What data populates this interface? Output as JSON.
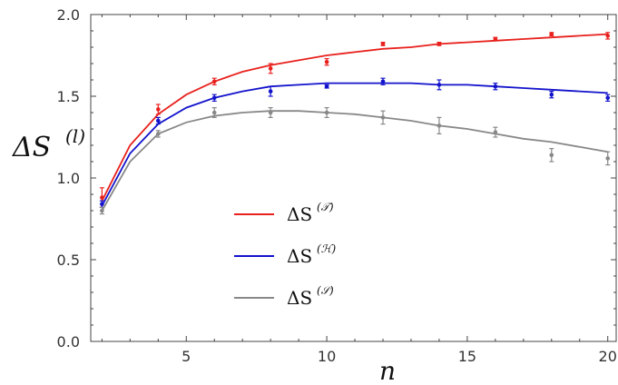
{
  "chart_data": {
    "type": "line",
    "xlabel": "n",
    "ylabel": "ΔS",
    "ylabel_superscript": "(l)",
    "xlim": [
      1.6,
      20.3
    ],
    "ylim": [
      0.0,
      2.0
    ],
    "xticks": [
      5,
      10,
      15,
      20
    ],
    "yticks": [
      0.0,
      0.5,
      1.0,
      1.5,
      2.0
    ],
    "ytick_labels": [
      "0.0",
      "0.5",
      "1.0",
      "1.5",
      "2.0"
    ],
    "grid": false,
    "legend_position": "center-left",
    "series": [
      {
        "name": "ΔS",
        "name_superscript": "(𝒯)",
        "color": "#e8211d",
        "curve_x": [
          2,
          3,
          4,
          5,
          6,
          7,
          8,
          9,
          10,
          11,
          12,
          13,
          14,
          15,
          16,
          17,
          18,
          19,
          20
        ],
        "curve_y": [
          0.86,
          1.2,
          1.39,
          1.51,
          1.59,
          1.65,
          1.69,
          1.72,
          1.75,
          1.77,
          1.79,
          1.8,
          1.82,
          1.83,
          1.84,
          1.85,
          1.86,
          1.87,
          1.88
        ],
        "points_x": [
          2,
          4,
          6,
          8,
          10,
          12,
          14,
          16,
          18,
          20
        ],
        "points_y": [
          0.88,
          1.42,
          1.59,
          1.67,
          1.71,
          1.82,
          1.82,
          1.85,
          1.88,
          1.87
        ],
        "errors": [
          0.06,
          0.03,
          0.02,
          0.03,
          0.02,
          0.01,
          0.01,
          0.01,
          0.01,
          0.02
        ]
      },
      {
        "name": "ΔS",
        "name_superscript": "(ℋ)",
        "color": "#1313cc",
        "curve_x": [
          2,
          3,
          4,
          5,
          6,
          7,
          8,
          9,
          10,
          11,
          12,
          13,
          14,
          15,
          16,
          17,
          18,
          19,
          20
        ],
        "curve_y": [
          0.83,
          1.15,
          1.33,
          1.43,
          1.49,
          1.53,
          1.56,
          1.57,
          1.58,
          1.58,
          1.58,
          1.58,
          1.57,
          1.57,
          1.56,
          1.55,
          1.54,
          1.53,
          1.52
        ],
        "points_x": [
          2,
          4,
          6,
          8,
          10,
          12,
          14,
          16,
          18,
          20
        ],
        "points_y": [
          0.84,
          1.35,
          1.49,
          1.53,
          1.56,
          1.59,
          1.57,
          1.56,
          1.51,
          1.49
        ],
        "errors": [
          0.02,
          0.02,
          0.02,
          0.03,
          0.01,
          0.02,
          0.03,
          0.02,
          0.02,
          0.02
        ]
      },
      {
        "name": "ΔS",
        "name_superscript": "(𝒮)",
        "color": "#888888",
        "curve_x": [
          2,
          3,
          4,
          5,
          6,
          7,
          8,
          9,
          10,
          11,
          12,
          13,
          14,
          15,
          16,
          17,
          18,
          19,
          20
        ],
        "curve_y": [
          0.8,
          1.1,
          1.27,
          1.34,
          1.38,
          1.4,
          1.41,
          1.41,
          1.4,
          1.39,
          1.37,
          1.35,
          1.32,
          1.3,
          1.27,
          1.24,
          1.22,
          1.19,
          1.16
        ],
        "points_x": [
          2,
          4,
          6,
          8,
          10,
          12,
          14,
          16,
          18,
          20
        ],
        "points_y": [
          0.8,
          1.27,
          1.4,
          1.4,
          1.4,
          1.37,
          1.32,
          1.28,
          1.14,
          1.12
        ],
        "errors": [
          0.02,
          0.02,
          0.03,
          0.03,
          0.03,
          0.04,
          0.05,
          0.03,
          0.04,
          0.04
        ]
      }
    ]
  }
}
